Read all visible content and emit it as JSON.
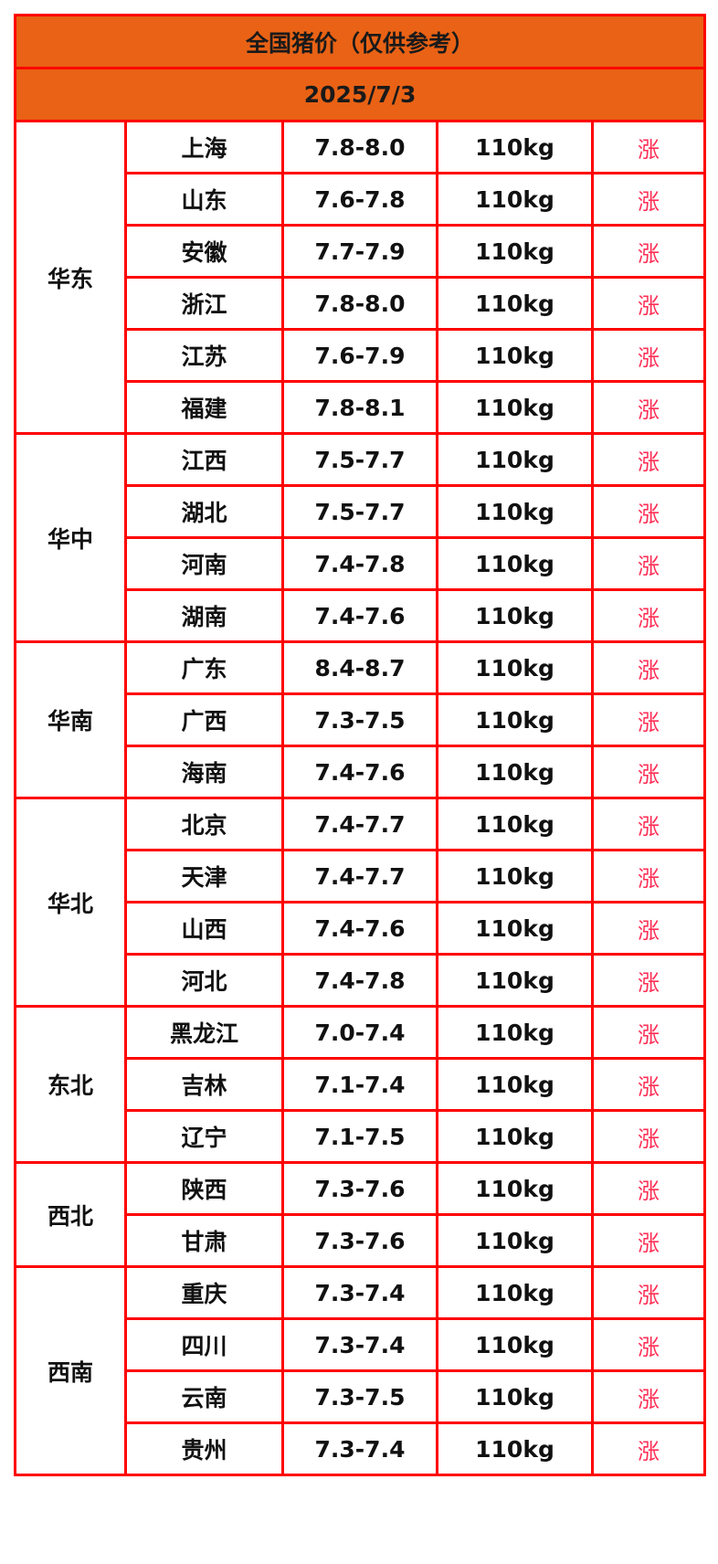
{
  "title": "全国猪价（仅供参考）",
  "date": "2025/7/3",
  "colors": {
    "header_bg": "#e96215",
    "border": "#ff0000",
    "rise_text": "#ff2e55"
  },
  "regions": [
    {
      "name": "华东",
      "rows": [
        {
          "province": "上海",
          "price": "7.8-8.0",
          "weight": "110kg",
          "trend": "涨"
        },
        {
          "province": "山东",
          "price": "7.6-7.8",
          "weight": "110kg",
          "trend": "涨"
        },
        {
          "province": "安徽",
          "price": "7.7-7.9",
          "weight": "110kg",
          "trend": "涨"
        },
        {
          "province": "浙江",
          "price": "7.8-8.0",
          "weight": "110kg",
          "trend": "涨"
        },
        {
          "province": "江苏",
          "price": "7.6-7.9",
          "weight": "110kg",
          "trend": "涨"
        },
        {
          "province": "福建",
          "price": "7.8-8.1",
          "weight": "110kg",
          "trend": "涨"
        }
      ]
    },
    {
      "name": "华中",
      "rows": [
        {
          "province": "江西",
          "price": "7.5-7.7",
          "weight": "110kg",
          "trend": "涨"
        },
        {
          "province": "湖北",
          "price": "7.5-7.7",
          "weight": "110kg",
          "trend": "涨"
        },
        {
          "province": "河南",
          "price": "7.4-7.8",
          "weight": "110kg",
          "trend": "涨"
        },
        {
          "province": "湖南",
          "price": "7.4-7.6",
          "weight": "110kg",
          "trend": "涨"
        }
      ]
    },
    {
      "name": "华南",
      "rows": [
        {
          "province": "广东",
          "price": "8.4-8.7",
          "weight": "110kg",
          "trend": "涨"
        },
        {
          "province": "广西",
          "price": "7.3-7.5",
          "weight": "110kg",
          "trend": "涨"
        },
        {
          "province": "海南",
          "price": "7.4-7.6",
          "weight": "110kg",
          "trend": "涨"
        }
      ]
    },
    {
      "name": "华北",
      "rows": [
        {
          "province": "北京",
          "price": "7.4-7.7",
          "weight": "110kg",
          "trend": "涨"
        },
        {
          "province": "天津",
          "price": "7.4-7.7",
          "weight": "110kg",
          "trend": "涨"
        },
        {
          "province": "山西",
          "price": "7.4-7.6",
          "weight": "110kg",
          "trend": "涨"
        },
        {
          "province": "河北",
          "price": "7.4-7.8",
          "weight": "110kg",
          "trend": "涨"
        }
      ]
    },
    {
      "name": "东北",
      "rows": [
        {
          "province": "黑龙江",
          "price": "7.0-7.4",
          "weight": "110kg",
          "trend": "涨"
        },
        {
          "province": "吉林",
          "price": "7.1-7.4",
          "weight": "110kg",
          "trend": "涨"
        },
        {
          "province": "辽宁",
          "price": "7.1-7.5",
          "weight": "110kg",
          "trend": "涨"
        }
      ]
    },
    {
      "name": "西北",
      "rows": [
        {
          "province": "陕西",
          "price": "7.3-7.6",
          "weight": "110kg",
          "trend": "涨"
        },
        {
          "province": "甘肃",
          "price": "7.3-7.6",
          "weight": "110kg",
          "trend": "涨"
        }
      ]
    },
    {
      "name": "西南",
      "rows": [
        {
          "province": "重庆",
          "price": "7.3-7.4",
          "weight": "110kg",
          "trend": "涨"
        },
        {
          "province": "四川",
          "price": "7.3-7.4",
          "weight": "110kg",
          "trend": "涨"
        },
        {
          "province": "云南",
          "price": "7.3-7.5",
          "weight": "110kg",
          "trend": "涨"
        },
        {
          "province": "贵州",
          "price": "7.3-7.4",
          "weight": "110kg",
          "trend": "涨"
        }
      ]
    }
  ]
}
